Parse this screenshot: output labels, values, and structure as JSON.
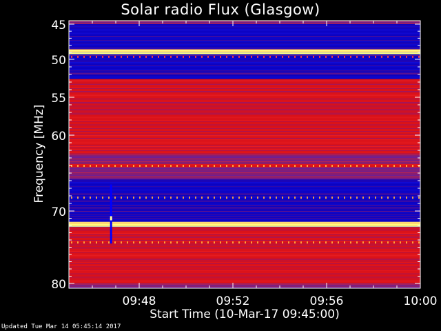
{
  "footer": "Updated Tue Mar 14 05:45:14 2017",
  "chart_data": {
    "type": "heatmap",
    "title": "Solar radio Flux (Glasgow)",
    "xlabel": "Start Time (10-Mar-17 09:45:00)",
    "ylabel": "Frequency [MHz]",
    "x_ticks": [
      "09:48",
      "09:52",
      "09:56",
      "10:00"
    ],
    "x_tick_values_min": [
      3,
      7,
      11,
      15
    ],
    "x_range_min": [
      0,
      15
    ],
    "y_ticks": [
      45,
      50,
      55,
      60,
      70,
      80
    ],
    "y_range_mhz": [
      45,
      80
    ],
    "colors": {
      "background": "#000000",
      "low": "#0000c8",
      "mid": "#8a1e6e",
      "high": "#e01010",
      "peak": "#ffff80"
    },
    "bands_mhz": [
      {
        "from": 45.0,
        "to": 48.5,
        "level": "low"
      },
      {
        "from": 48.6,
        "to": 49.3,
        "level": "peak"
      },
      {
        "from": 49.3,
        "to": 52.6,
        "level": "low"
      },
      {
        "from": 52.6,
        "to": 53.2,
        "level": "high"
      },
      {
        "from": 53.2,
        "to": 56.5,
        "level": "high"
      },
      {
        "from": 56.5,
        "to": 62.5,
        "level": "high"
      },
      {
        "from": 62.5,
        "to": 63.8,
        "level": "mid"
      },
      {
        "from": 63.8,
        "to": 64.2,
        "level": "high"
      },
      {
        "from": 64.2,
        "to": 65.8,
        "level": "mid"
      },
      {
        "from": 65.8,
        "to": 71.5,
        "level": "low"
      },
      {
        "from": 71.5,
        "to": 72.2,
        "level": "peak"
      },
      {
        "from": 72.2,
        "to": 75.0,
        "level": "high"
      },
      {
        "from": 75.0,
        "to": 80.0,
        "level": "high"
      }
    ],
    "burst": {
      "time_min": 1.8,
      "from_mhz": 66.5,
      "to_mhz": 74.5
    }
  }
}
